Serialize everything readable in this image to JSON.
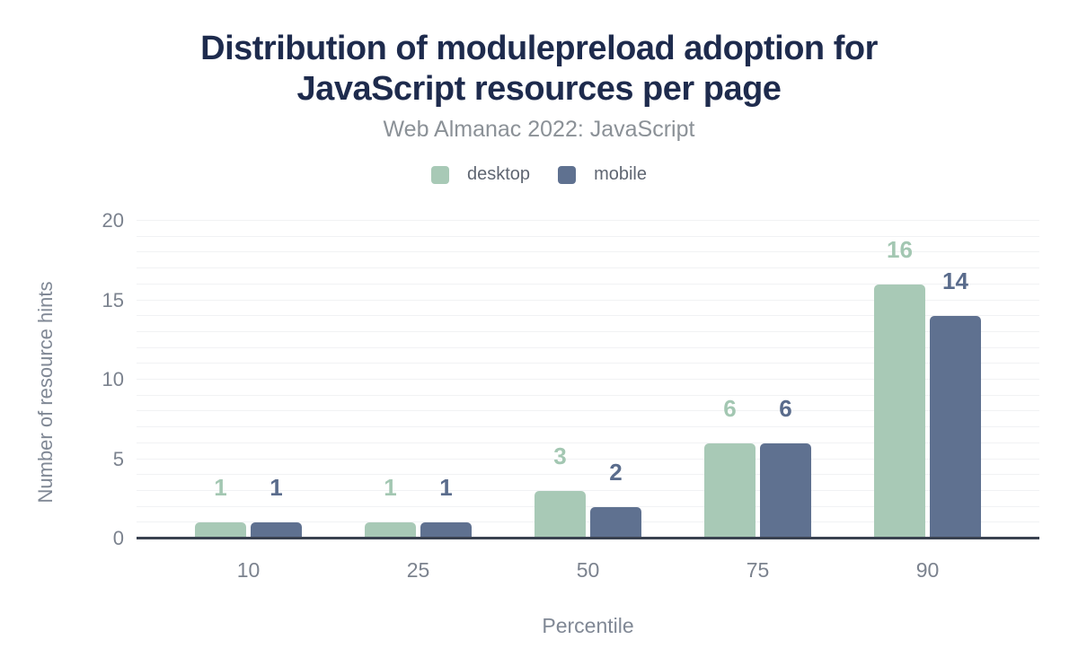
{
  "title_lines": [
    "Distribution of modulepreload adoption for",
    "JavaScript resources per page"
  ],
  "subtitle": "Web Almanac 2022: JavaScript",
  "legend": [
    {
      "label": "desktop",
      "color": "#a8c9b6"
    },
    {
      "label": "mobile",
      "color": "#5f7190"
    }
  ],
  "colors": {
    "title": "#1e2b4d",
    "subtitle": "#8b9197",
    "axis_text": "#7b828e",
    "axis_line": "#3a4250",
    "gridline": "#f1f2f4",
    "desktop_bar": "#a8c9b6",
    "desktop_label": "#a3c7b2",
    "mobile_bar": "#5f7190",
    "mobile_label": "#5a6c8c"
  },
  "chart_data": {
    "type": "bar",
    "categories": [
      "10",
      "25",
      "50",
      "75",
      "90"
    ],
    "series": [
      {
        "name": "desktop",
        "color": "#a8c9b6",
        "label_color": "#a3c7b2",
        "values": [
          1,
          1,
          3,
          6,
          16
        ]
      },
      {
        "name": "mobile",
        "color": "#5f7190",
        "label_color": "#5a6c8c",
        "values": [
          1,
          1,
          2,
          6,
          14
        ]
      }
    ],
    "title": "Distribution of modulepreload adoption for JavaScript resources per page",
    "subtitle": "Web Almanac 2022: JavaScript",
    "xlabel": "Percentile",
    "ylabel": "Number of resource hints",
    "ylim": [
      0,
      20
    ],
    "yticks": [
      0,
      5,
      10,
      15,
      20
    ],
    "grid": "horizontal lines every 1 unit, faint",
    "legend_position": "top center",
    "bar_value_labels": true
  }
}
